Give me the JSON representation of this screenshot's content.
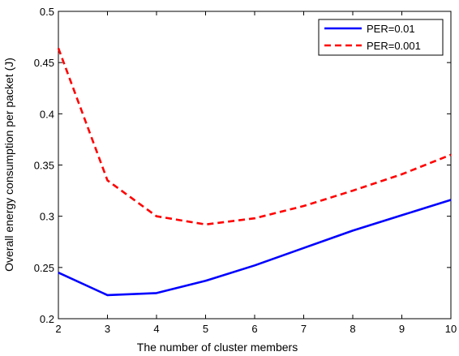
{
  "chart_data": {
    "type": "line",
    "title": "",
    "xlabel": "The number of cluster members",
    "ylabel": "Overall energy consumption per packet (J)",
    "xlim": [
      2,
      10
    ],
    "ylim": [
      0.2,
      0.5
    ],
    "xticks": [
      "2",
      "3",
      "4",
      "5",
      "6",
      "7",
      "8",
      "9",
      "10"
    ],
    "yticks": [
      "0.2",
      "0.25",
      "0.3",
      "0.35",
      "0.4",
      "0.45",
      "0.5"
    ],
    "x": [
      2,
      3,
      4,
      5,
      6,
      7,
      8,
      9,
      10
    ],
    "grid": false,
    "legend_position": "top-right",
    "series": [
      {
        "name": "PER=0.01",
        "color": "#0000ff",
        "line_style": "solid",
        "values": [
          0.245,
          0.223,
          0.225,
          0.237,
          0.252,
          0.269,
          0.286,
          0.301,
          0.316
        ]
      },
      {
        "name": "PER=0.001",
        "color": "#ff0000",
        "line_style": "dashed",
        "values": [
          0.464,
          0.335,
          0.3,
          0.292,
          0.298,
          0.31,
          0.325,
          0.341,
          0.36
        ]
      }
    ]
  }
}
